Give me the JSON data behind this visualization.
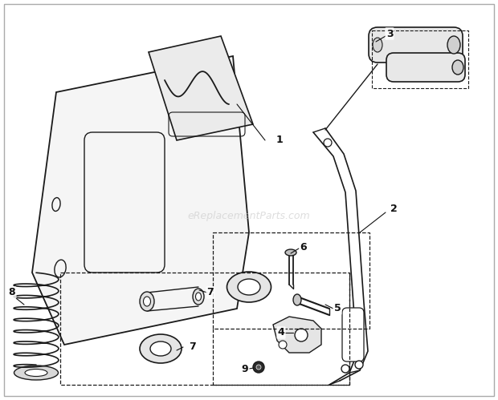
{
  "bg_color": "#ffffff",
  "line_color": "#1a1a1a",
  "watermark": "eReplacementParts.com",
  "watermark_color": "#c8c8c8",
  "figsize": [
    6.2,
    4.99
  ],
  "dpi": 100
}
